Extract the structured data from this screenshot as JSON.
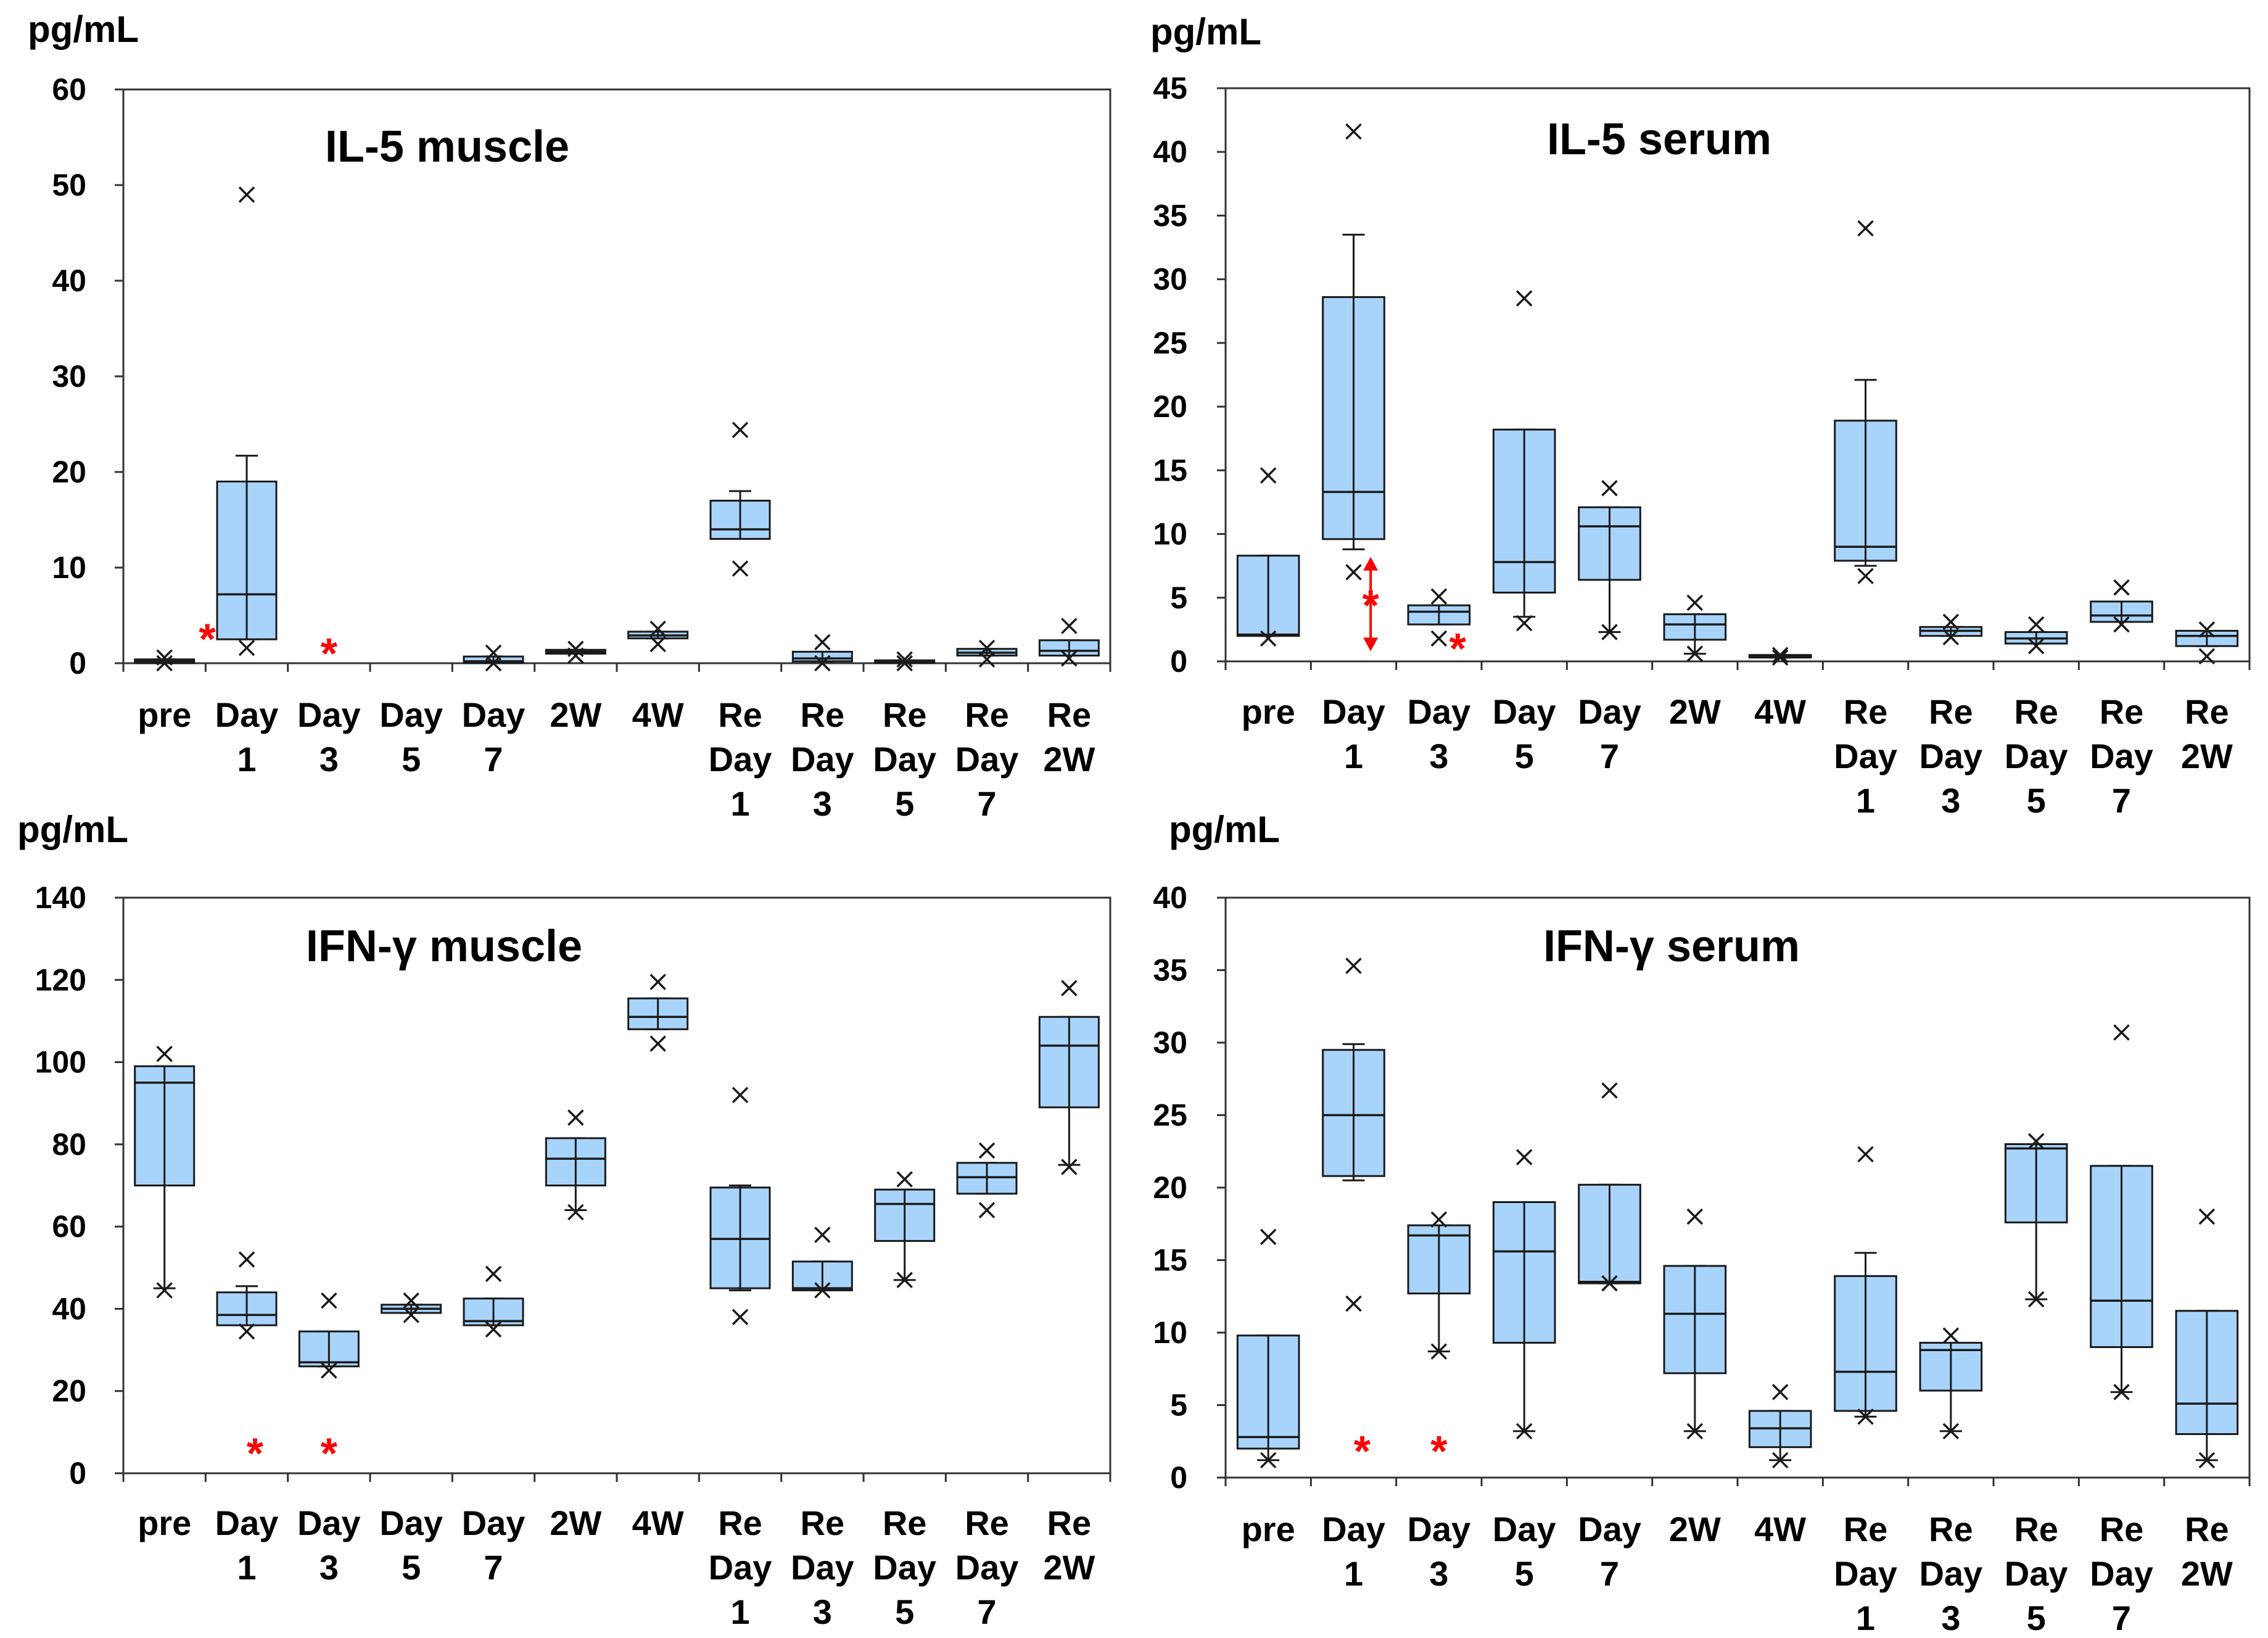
{
  "colors": {
    "box_fill": "#a8d4fb",
    "box_stroke": "#1a1a1a",
    "marker": "#1a1a1a",
    "significance": "#ff0000"
  },
  "chart_data": [
    {
      "type": "box",
      "title": "IL-5 muscle",
      "ylabel": "pg/mL",
      "ylim": [
        0,
        60
      ],
      "yticks": [
        0,
        10,
        20,
        30,
        40,
        50,
        60
      ],
      "categories": [
        [
          "pre"
        ],
        [
          "Day",
          "1"
        ],
        [
          "Day",
          "3"
        ],
        [
          "Day",
          "5"
        ],
        [
          "Day",
          "7"
        ],
        [
          "2W"
        ],
        [
          "4W"
        ],
        [
          "Re",
          "Day",
          "1"
        ],
        [
          "Re",
          "Day",
          "3"
        ],
        [
          "Re",
          "Day",
          "5"
        ],
        [
          "Re",
          "Day",
          "7"
        ],
        [
          "Re",
          "2W"
        ]
      ],
      "boxes": [
        {
          "q1": 0,
          "median": 0.2,
          "q3": 0.4,
          "whisker_low": 0,
          "whisker_high": 0.4,
          "max": 0.6,
          "min": 0
        },
        {
          "q1": 2.5,
          "median": 7.2,
          "q3": 19,
          "whisker_low": 2.5,
          "whisker_high": 21.7,
          "max": 49,
          "min": 1.6
        },
        null,
        null,
        {
          "q1": 0,
          "median": 0.2,
          "q3": 0.7,
          "whisker_low": 0,
          "whisker_high": 0.7,
          "max": 1.1,
          "min": 0
        },
        {
          "q1": 1,
          "median": 1.2,
          "q3": 1.4,
          "whisker_low": 1,
          "whisker_high": 1.4,
          "max": 1.5,
          "min": 0.8
        },
        {
          "q1": 2.6,
          "median": 2.9,
          "q3": 3.3,
          "whisker_low": 2.6,
          "whisker_high": 3.3,
          "max": 3.6,
          "min": 2
        },
        {
          "q1": 13,
          "median": 14,
          "q3": 17,
          "whisker_low": 13,
          "whisker_high": 18,
          "max": 24.4,
          "min": 9.9
        },
        {
          "q1": 0.2,
          "median": 0.5,
          "q3": 1.2,
          "whisker_low": 0.2,
          "whisker_high": 1.2,
          "max": 2.2,
          "min": 0
        },
        {
          "q1": 0,
          "median": 0.1,
          "q3": 0.3,
          "whisker_low": 0,
          "whisker_high": 0.3,
          "max": 0.4,
          "min": 0
        },
        {
          "q1": 0.8,
          "median": 1.1,
          "q3": 1.5,
          "whisker_low": 0.8,
          "whisker_high": 1.5,
          "max": 1.6,
          "min": 0.4
        },
        {
          "q1": 0.8,
          "median": 1.3,
          "q3": 2.4,
          "whisker_low": 0.8,
          "whisker_high": 2.4,
          "max": 3.9,
          "min": 0.5
        }
      ],
      "significance": [
        {
          "category_index": 1,
          "value": 2.8,
          "offset": -0.48
        },
        {
          "category_index": 2,
          "value": 1.3,
          "offset": 0
        }
      ]
    },
    {
      "type": "box",
      "title": "IL-5 serum",
      "ylabel": "pg/mL",
      "ylim": [
        0,
        45
      ],
      "yticks": [
        0,
        5,
        10,
        15,
        20,
        25,
        30,
        35,
        40,
        45
      ],
      "categories": [
        [
          "pre"
        ],
        [
          "Day",
          "1"
        ],
        [
          "Day",
          "3"
        ],
        [
          "Day",
          "5"
        ],
        [
          "Day",
          "7"
        ],
        [
          "2W"
        ],
        [
          "4W"
        ],
        [
          "Re",
          "Day",
          "1"
        ],
        [
          "Re",
          "Day",
          "3"
        ],
        [
          "Re",
          "Day",
          "5"
        ],
        [
          "Re",
          "Day",
          "7"
        ],
        [
          "Re",
          "2W"
        ]
      ],
      "boxes": [
        {
          "q1": 2,
          "median": 2.1,
          "q3": 8.3,
          "whisker_low": 2,
          "whisker_high": 8.3,
          "max": 14.6,
          "min": 1.8
        },
        {
          "q1": 9.6,
          "median": 13.3,
          "q3": 28.6,
          "whisker_low": 8.8,
          "whisker_high": 33.5,
          "max": 41.6,
          "min": 7
        },
        {
          "q1": 2.9,
          "median": 3.9,
          "q3": 4.4,
          "whisker_low": 2.9,
          "whisker_high": 4.4,
          "max": 5.1,
          "min": 1.8
        },
        {
          "q1": 5.4,
          "median": 7.8,
          "q3": 18.2,
          "whisker_low": 3.5,
          "whisker_high": 18.2,
          "max": 28.5,
          "min": 3
        },
        {
          "q1": 6.4,
          "median": 10.6,
          "q3": 12.1,
          "whisker_low": 2.3,
          "whisker_high": 12.1,
          "max": 13.6,
          "min": 2.3
        },
        {
          "q1": 1.7,
          "median": 2.9,
          "q3": 3.7,
          "whisker_low": 0.6,
          "whisker_high": 3.7,
          "max": 4.6,
          "min": 0.6
        },
        {
          "q1": 0.3,
          "median": 0.4,
          "q3": 0.5,
          "whisker_low": 0.3,
          "whisker_high": 0.5,
          "max": 0.5,
          "min": 0.3
        },
        {
          "q1": 7.9,
          "median": 9,
          "q3": 18.9,
          "whisker_low": 7.5,
          "whisker_high": 22.1,
          "max": 34,
          "min": 6.7
        },
        {
          "q1": 2,
          "median": 2.4,
          "q3": 2.7,
          "whisker_low": 2,
          "whisker_high": 2.7,
          "max": 3.1,
          "min": 1.9
        },
        {
          "q1": 1.4,
          "median": 1.8,
          "q3": 2.3,
          "whisker_low": 1.4,
          "whisker_high": 2.3,
          "max": 2.9,
          "min": 1.2
        },
        {
          "q1": 3.1,
          "median": 3.6,
          "q3": 4.7,
          "whisker_low": 3.1,
          "whisker_high": 4.7,
          "max": 5.8,
          "min": 2.9
        },
        {
          "q1": 1.2,
          "median": 2,
          "q3": 2.4,
          "whisker_low": 1.2,
          "whisker_high": 2.4,
          "max": 2.5,
          "min": 0.4
        }
      ],
      "significance": [
        {
          "category_index": 1,
          "value": 4.6,
          "offset": 0.2
        },
        {
          "category_index": 2,
          "value": 1.2,
          "offset": 0.22
        }
      ],
      "range_arrow": {
        "category_index": 1,
        "from": 0.8,
        "to": 8.2,
        "offset": 0.2
      }
    },
    {
      "type": "box",
      "title": "IFN-γ muscle",
      "ylabel": "pg/mL",
      "ylim": [
        0,
        140
      ],
      "yticks": [
        0,
        20,
        40,
        60,
        80,
        100,
        120,
        140
      ],
      "categories": [
        [
          "pre"
        ],
        [
          "Day",
          "1"
        ],
        [
          "Day",
          "3"
        ],
        [
          "Day",
          "5"
        ],
        [
          "Day",
          "7"
        ],
        [
          "2W"
        ],
        [
          "4W"
        ],
        [
          "Re",
          "Day",
          "1"
        ],
        [
          "Re",
          "Day",
          "3"
        ],
        [
          "Re",
          "Day",
          "5"
        ],
        [
          "Re",
          "Day",
          "7"
        ],
        [
          "Re",
          "2W"
        ]
      ],
      "boxes": [
        {
          "q1": 70,
          "median": 95,
          "q3": 99,
          "whisker_low": 45,
          "whisker_high": 99,
          "max": 102,
          "min": 44.5
        },
        {
          "q1": 36,
          "median": 38.5,
          "q3": 44,
          "whisker_low": 36,
          "whisker_high": 45.5,
          "max": 52,
          "min": 34.5
        },
        {
          "q1": 26,
          "median": 27,
          "q3": 34.5,
          "whisker_low": 26,
          "whisker_high": 34.5,
          "max": 42,
          "min": 25
        },
        {
          "q1": 39,
          "median": 40,
          "q3": 41,
          "whisker_low": 39,
          "whisker_high": 41,
          "max": 42,
          "min": 38.5
        },
        {
          "q1": 36,
          "median": 37,
          "q3": 42.5,
          "whisker_low": 36,
          "whisker_high": 42.5,
          "max": 48.5,
          "min": 35
        },
        {
          "q1": 70,
          "median": 76.5,
          "q3": 81.5,
          "whisker_low": 64,
          "whisker_high": 81.5,
          "max": 86.5,
          "min": 63.5
        },
        {
          "q1": 108,
          "median": 111,
          "q3": 115.5,
          "whisker_low": 108,
          "whisker_high": 115.5,
          "max": 119.5,
          "min": 104.5
        },
        {
          "q1": 45,
          "median": 57,
          "q3": 69.5,
          "whisker_low": 44.5,
          "whisker_high": 70,
          "max": 92,
          "min": 38
        },
        {
          "q1": 44.5,
          "median": 45,
          "q3": 51.5,
          "whisker_low": 44.5,
          "whisker_high": 51.5,
          "max": 58,
          "min": 44.5
        },
        {
          "q1": 56.5,
          "median": 65.5,
          "q3": 69,
          "whisker_low": 47,
          "whisker_high": 69,
          "max": 71.5,
          "min": 47
        },
        {
          "q1": 68,
          "median": 72,
          "q3": 75.5,
          "whisker_low": 68,
          "whisker_high": 75.5,
          "max": 78.5,
          "min": 64
        },
        {
          "q1": 89,
          "median": 104,
          "q3": 111,
          "whisker_low": 75,
          "whisker_high": 111,
          "max": 118,
          "min": 74.5
        }
      ],
      "significance": [
        {
          "category_index": 1,
          "value": 5.5,
          "offset": 0.1
        },
        {
          "category_index": 2,
          "value": 5.5,
          "offset": 0
        }
      ]
    },
    {
      "type": "box",
      "title": "IFN-γ serum",
      "ylabel": "pg/mL",
      "ylim": [
        0,
        40
      ],
      "yticks": [
        0,
        5,
        10,
        15,
        20,
        25,
        30,
        35,
        40
      ],
      "categories": [
        [
          "pre"
        ],
        [
          "Day",
          "1"
        ],
        [
          "Day",
          "3"
        ],
        [
          "Day",
          "5"
        ],
        [
          "Day",
          "7"
        ],
        [
          "2W"
        ],
        [
          "4W"
        ],
        [
          "Re",
          "Day",
          "1"
        ],
        [
          "Re",
          "Day",
          "3"
        ],
        [
          "Re",
          "Day",
          "5"
        ],
        [
          "Re",
          "Day",
          "7"
        ],
        [
          "Re",
          "2W"
        ]
      ],
      "boxes": [
        {
          "q1": 2,
          "median": 2.8,
          "q3": 9.8,
          "whisker_low": 1.2,
          "whisker_high": 9.8,
          "max": 16.6,
          "min": 1.2
        },
        {
          "q1": 20.8,
          "median": 25,
          "q3": 29.5,
          "whisker_low": 20.5,
          "whisker_high": 29.9,
          "max": 35.3,
          "min": 12
        },
        {
          "q1": 12.7,
          "median": 16.7,
          "q3": 17.4,
          "whisker_low": 8.7,
          "whisker_high": 17.4,
          "max": 17.8,
          "min": 8.7
        },
        {
          "q1": 9.3,
          "median": 15.6,
          "q3": 19,
          "whisker_low": 3.2,
          "whisker_high": 19,
          "max": 22.1,
          "min": 3.2
        },
        {
          "q1": 13.4,
          "median": 13.5,
          "q3": 20.2,
          "whisker_low": 13.4,
          "whisker_high": 20.2,
          "max": 26.7,
          "min": 13.4
        },
        {
          "q1": 7.2,
          "median": 11.3,
          "q3": 14.6,
          "whisker_low": 3.2,
          "whisker_high": 14.6,
          "max": 18,
          "min": 3.2
        },
        {
          "q1": 2.1,
          "median": 3.4,
          "q3": 4.6,
          "whisker_low": 1.2,
          "whisker_high": 4.6,
          "max": 5.9,
          "min": 1.2
        },
        {
          "q1": 4.6,
          "median": 7.3,
          "q3": 13.9,
          "whisker_low": 4.2,
          "whisker_high": 15.5,
          "max": 22.3,
          "min": 4.2
        },
        {
          "q1": 6,
          "median": 8.8,
          "q3": 9.3,
          "whisker_low": 3.2,
          "whisker_high": 9.3,
          "max": 9.8,
          "min": 3.2
        },
        {
          "q1": 17.6,
          "median": 22.7,
          "q3": 23,
          "whisker_low": 12.3,
          "whisker_high": 23,
          "max": 23.2,
          "min": 12.3
        },
        {
          "q1": 9,
          "median": 12.2,
          "q3": 21.5,
          "whisker_low": 5.9,
          "whisker_high": 21.5,
          "max": 30.7,
          "min": 5.9
        },
        {
          "q1": 3,
          "median": 5.1,
          "q3": 11.5,
          "whisker_low": 1.2,
          "whisker_high": 11.5,
          "max": 18,
          "min": 1.2
        }
      ],
      "significance": [
        {
          "category_index": 1,
          "value": 2,
          "offset": 0.1
        },
        {
          "category_index": 2,
          "value": 2,
          "offset": 0
        }
      ]
    }
  ]
}
